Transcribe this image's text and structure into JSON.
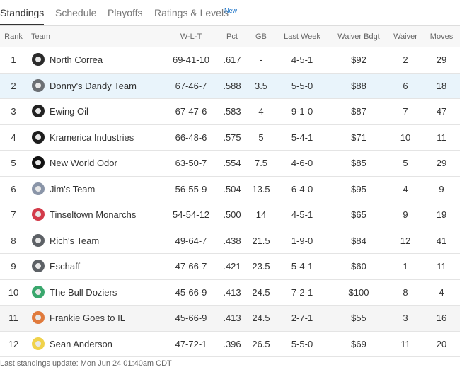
{
  "tabs": [
    "Standings",
    "Schedule",
    "Playoffs",
    "Ratings & Levels"
  ],
  "tab_badge": "New",
  "table": {
    "headers": [
      "Rank",
      "Team",
      "W-L-T",
      "Pct",
      "GB",
      "Last Week",
      "Waiver Bdgt",
      "Waiver",
      "Moves"
    ],
    "rows": [
      [
        "1",
        "North Correa",
        "69-41-10",
        ".617",
        "-",
        "4-5-1",
        "$92",
        "2",
        "29"
      ],
      [
        "2",
        "Donny's Dandy Team",
        "67-46-7",
        ".588",
        "3.5",
        "5-5-0",
        "$88",
        "6",
        "18"
      ],
      [
        "3",
        "Ewing Oil",
        "67-47-6",
        ".583",
        "4",
        "9-1-0",
        "$87",
        "7",
        "47"
      ],
      [
        "4",
        "Kramerica Industries",
        "66-48-6",
        ".575",
        "5",
        "5-4-1",
        "$71",
        "10",
        "11"
      ],
      [
        "5",
        "New World Odor",
        "63-50-7",
        ".554",
        "7.5",
        "4-6-0",
        "$85",
        "5",
        "29"
      ],
      [
        "6",
        "Jim's Team",
        "56-55-9",
        ".504",
        "13.5",
        "6-4-0",
        "$95",
        "4",
        "9"
      ],
      [
        "7",
        "Tinseltown Monarchs",
        "54-54-12",
        ".500",
        "14",
        "4-5-1",
        "$65",
        "9",
        "19"
      ],
      [
        "8",
        "Rich's Team",
        "49-64-7",
        ".438",
        "21.5",
        "1-9-0",
        "$84",
        "12",
        "41"
      ],
      [
        "9",
        "Eschaff",
        "47-66-7",
        ".421",
        "23.5",
        "5-4-1",
        "$60",
        "1",
        "11"
      ],
      [
        "10",
        "The Bull Doziers",
        "45-66-9",
        ".413",
        "24.5",
        "7-2-1",
        "$100",
        "8",
        "4"
      ],
      [
        "11",
        "Frankie Goes to IL",
        "45-66-9",
        ".413",
        "24.5",
        "2-7-1",
        "$55",
        "3",
        "16"
      ],
      [
        "12",
        "Sean Anderson",
        "47-72-1",
        ".396",
        "26.5",
        "5-5-0",
        "$69",
        "11",
        "20"
      ]
    ]
  },
  "footer": "Last standings update: Mon Jun 24 01:40am CDT"
}
